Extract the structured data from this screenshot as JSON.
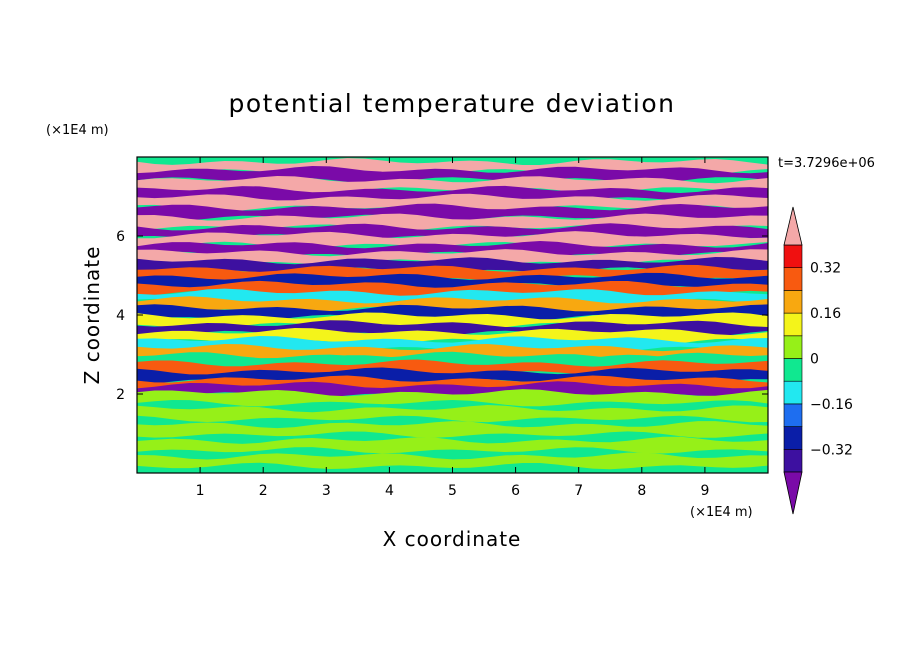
{
  "chart_data": {
    "type": "heatmap",
    "title": "potential temperature deviation",
    "xlabel": "X coordinate",
    "ylabel": "Z coordinate",
    "x_unit": "(×1E4 m)",
    "z_unit": "(×1E4 m)",
    "time_label": "t=3.7296e+06",
    "xlim": [
      0,
      10
    ],
    "ylim": [
      0,
      8
    ],
    "x_ticks": [
      1,
      2,
      3,
      4,
      5,
      6,
      7,
      8,
      9
    ],
    "y_ticks": [
      2,
      4,
      6
    ],
    "colorbar": {
      "levels": [
        -0.4,
        -0.32,
        -0.24,
        -0.16,
        -0.08,
        0,
        0.08,
        0.16,
        0.24,
        0.32,
        0.4
      ],
      "tick_labels": [
        "0.32",
        "0.16",
        "0",
        "−0.16",
        "−0.32"
      ],
      "tick_values": [
        0.32,
        0.16,
        0,
        -0.16,
        -0.32
      ],
      "colors_low_to_high": [
        "#7a0aa8",
        "#3d10a0",
        "#0a1ea8",
        "#1e6ef0",
        "#22e8f0",
        "#10e890",
        "#96f018",
        "#f4f41a",
        "#f8a810",
        "#f85a10",
        "#f01010",
        "#f4a8a8"
      ]
    },
    "bands": [
      {
        "z": 7.75,
        "value": 0.45
      },
      {
        "z": 7.55,
        "value": -0.45
      },
      {
        "z": 7.3,
        "value": 0.45
      },
      {
        "z": 7.05,
        "value": -0.45
      },
      {
        "z": 6.85,
        "value": 0.45
      },
      {
        "z": 6.6,
        "value": -0.45
      },
      {
        "z": 6.35,
        "value": 0.45
      },
      {
        "z": 6.1,
        "value": -0.45
      },
      {
        "z": 5.9,
        "value": 0.45
      },
      {
        "z": 5.65,
        "value": -0.45
      },
      {
        "z": 5.45,
        "value": 0.45
      },
      {
        "z": 5.25,
        "value": -0.4
      },
      {
        "z": 5.05,
        "value": 0.3
      },
      {
        "z": 4.85,
        "value": -0.3
      },
      {
        "z": 4.65,
        "value": 0.25
      },
      {
        "z": 4.45,
        "value": -0.1
      },
      {
        "z": 4.25,
        "value": 0.2
      },
      {
        "z": 4.05,
        "value": -0.25
      },
      {
        "z": 3.85,
        "value": 0.15
      },
      {
        "z": 3.65,
        "value": -0.35
      },
      {
        "z": 3.45,
        "value": 0.1
      },
      {
        "z": 3.25,
        "value": -0.15
      },
      {
        "z": 3.05,
        "value": 0.2
      },
      {
        "z": 2.85,
        "value": -0.05
      },
      {
        "z": 2.65,
        "value": 0.25
      },
      {
        "z": 2.45,
        "value": -0.3
      },
      {
        "z": 2.25,
        "value": 0.3
      },
      {
        "z": 2.1,
        "value": -0.45
      },
      {
        "z": 1.9,
        "value": 0.05
      },
      {
        "z": 1.5,
        "value": 0.03
      },
      {
        "z": 1.1,
        "value": 0.05
      },
      {
        "z": 0.7,
        "value": 0.02
      },
      {
        "z": 0.3,
        "value": 0.05
      }
    ]
  }
}
